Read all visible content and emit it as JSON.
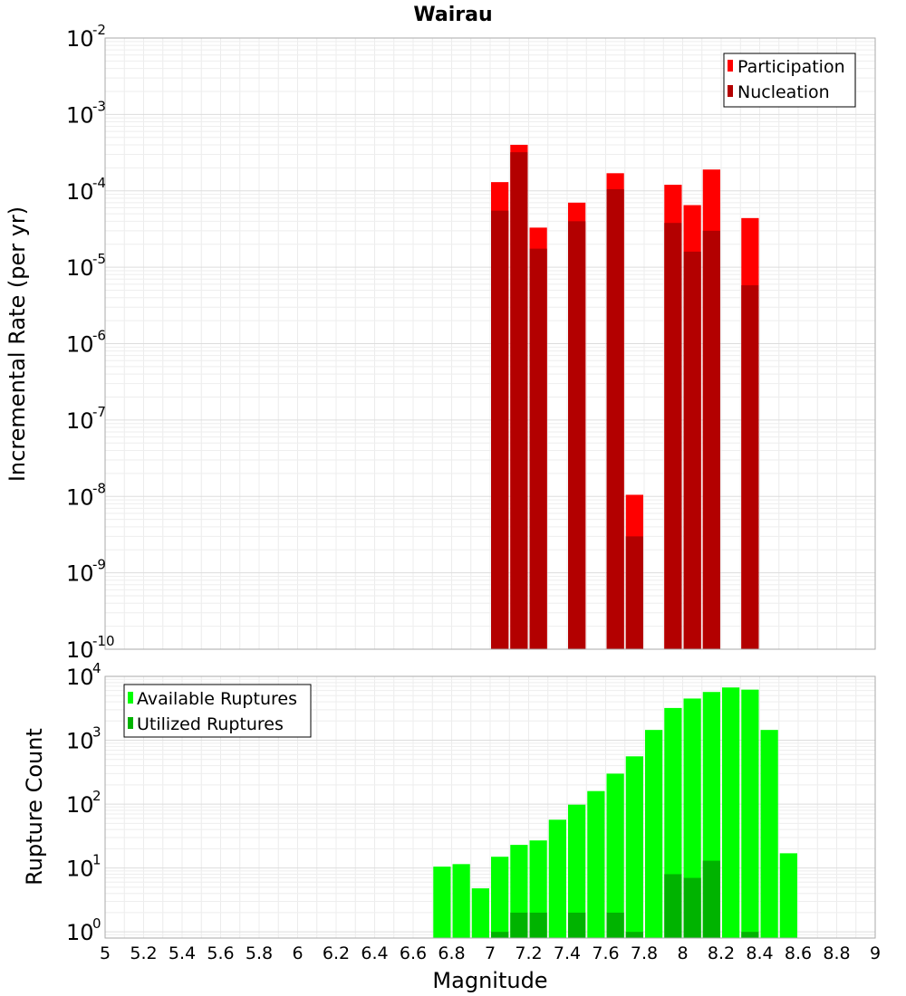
{
  "chart_data": [
    {
      "type": "bar",
      "title": "Wairau",
      "xlabel": "",
      "ylabel": "Incremental Rate (per yr)",
      "yscale": "log",
      "ylim": [
        1e-10,
        0.01
      ],
      "xlim": [
        5,
        9
      ],
      "ytick_labels": [
        {
          "base": "10",
          "exp": "-10"
        },
        {
          "base": "10",
          "exp": "-9"
        },
        {
          "base": "10",
          "exp": "-8"
        },
        {
          "base": "10",
          "exp": "-7"
        },
        {
          "base": "10",
          "exp": "-6"
        },
        {
          "base": "10",
          "exp": "-5"
        },
        {
          "base": "10",
          "exp": "-4"
        },
        {
          "base": "10",
          "exp": "-3"
        },
        {
          "base": "10",
          "exp": "-2"
        }
      ],
      "grid": true,
      "legend_position": "top-right",
      "bin_width": 0.1,
      "x": [
        7.05,
        7.15,
        7.25,
        7.45,
        7.65,
        7.75,
        7.95,
        8.05,
        8.15,
        8.35
      ],
      "series": [
        {
          "name": "Participation",
          "color": "#ff0000",
          "values": [
            0.00013,
            0.0004,
            3.3e-05,
            7e-05,
            0.00017,
            1.05e-08,
            0.00012,
            6.5e-05,
            0.00019,
            4.4e-05
          ]
        },
        {
          "name": "Nucleation",
          "color": "#b30000",
          "values": [
            5.5e-05,
            0.00032,
            1.75e-05,
            4e-05,
            0.000105,
            3e-09,
            3.8e-05,
            1.6e-05,
            3e-05,
            5.8e-06
          ]
        }
      ]
    },
    {
      "type": "bar",
      "title": "",
      "xlabel": "Magnitude",
      "ylabel": "Rupture Count",
      "yscale": "log",
      "ylim": [
        0.8,
        10000
      ],
      "xlim": [
        5,
        9
      ],
      "ytick_labels": [
        {
          "base": "10",
          "exp": "0",
          "value": 1
        },
        {
          "base": "10",
          "exp": "1",
          "value": 10
        },
        {
          "base": "10",
          "exp": "2",
          "value": 100
        },
        {
          "base": "10",
          "exp": "3",
          "value": 1000
        },
        {
          "base": "10",
          "exp": "4",
          "value": 10000
        }
      ],
      "xtick_labels": [
        "5",
        "5.2",
        "5.4",
        "5.6",
        "5.8",
        "6",
        "6.2",
        "6.4",
        "6.6",
        "6.8",
        "7",
        "7.2",
        "7.4",
        "7.6",
        "7.8",
        "8",
        "8.2",
        "8.4",
        "8.6",
        "8.8",
        "9"
      ],
      "grid": true,
      "legend_position": "top-left",
      "bin_width": 0.1,
      "x": [
        6.75,
        6.85,
        6.95,
        7.05,
        7.15,
        7.25,
        7.35,
        7.45,
        7.55,
        7.65,
        7.75,
        7.85,
        7.95,
        8.05,
        8.15,
        8.25,
        8.35,
        8.45,
        8.55
      ],
      "series": [
        {
          "name": "Available Ruptures",
          "color": "#00ff00",
          "values": [
            10.5,
            11.5,
            4.8,
            15,
            23,
            27,
            57,
            98,
            160,
            300,
            560,
            1450,
            3200,
            4500,
            5700,
            6700,
            6200,
            1450,
            17
          ]
        },
        {
          "name": "Utilized Ruptures",
          "color": "#00b300",
          "values": [
            0,
            0,
            0,
            1,
            2,
            2,
            0,
            2,
            0,
            2,
            1,
            0,
            8,
            7,
            13,
            0,
            1,
            0,
            0
          ]
        }
      ]
    }
  ]
}
